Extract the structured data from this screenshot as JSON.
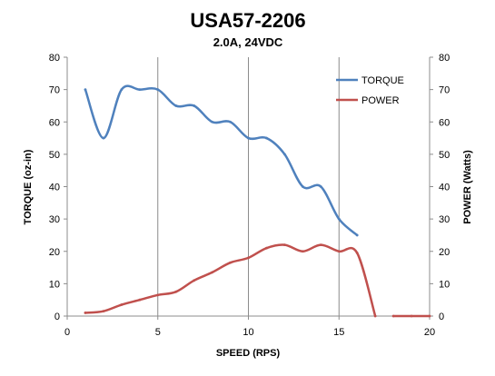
{
  "chart_data": {
    "type": "line",
    "title": "USA57-2206",
    "subtitle": "2.0A, 24VDC",
    "xlabel": "SPEED (RPS)",
    "ylabel_left": "TORQUE (oz-in)",
    "ylabel_right": "POWER (Watts)",
    "xlim": [
      0,
      20
    ],
    "ylim_left": [
      0,
      80
    ],
    "ylim_right": [
      0,
      80
    ],
    "x_ticks": [
      0,
      5,
      10,
      15,
      20
    ],
    "y_ticks": [
      0,
      10,
      20,
      30,
      40,
      50,
      60,
      70,
      80
    ],
    "grid": "vertical",
    "legend_position": "top-right",
    "series": [
      {
        "name": "TORQUE",
        "axis": "left",
        "color": "#4F81BD",
        "x": [
          1,
          2,
          3,
          4,
          5,
          6,
          7,
          8,
          9,
          10,
          11,
          12,
          13,
          14,
          15,
          16
        ],
        "y": [
          70,
          55,
          70,
          70,
          70,
          65,
          65,
          60,
          60,
          55,
          55,
          50,
          40,
          40,
          30,
          25
        ]
      },
      {
        "name": "POWER",
        "axis": "right",
        "color": "#C0504D",
        "x": [
          1,
          2,
          3,
          4,
          5,
          6,
          7,
          8,
          9,
          10,
          11,
          12,
          13,
          14,
          15,
          16,
          17,
          18,
          19,
          20
        ],
        "y": [
          1,
          1.5,
          3.5,
          5,
          6.5,
          7.5,
          11,
          13.5,
          16.5,
          18,
          21,
          22,
          20,
          22,
          20,
          19.5,
          0,
          0,
          0,
          0
        ],
        "segment_break_after_index": 16
      }
    ]
  }
}
